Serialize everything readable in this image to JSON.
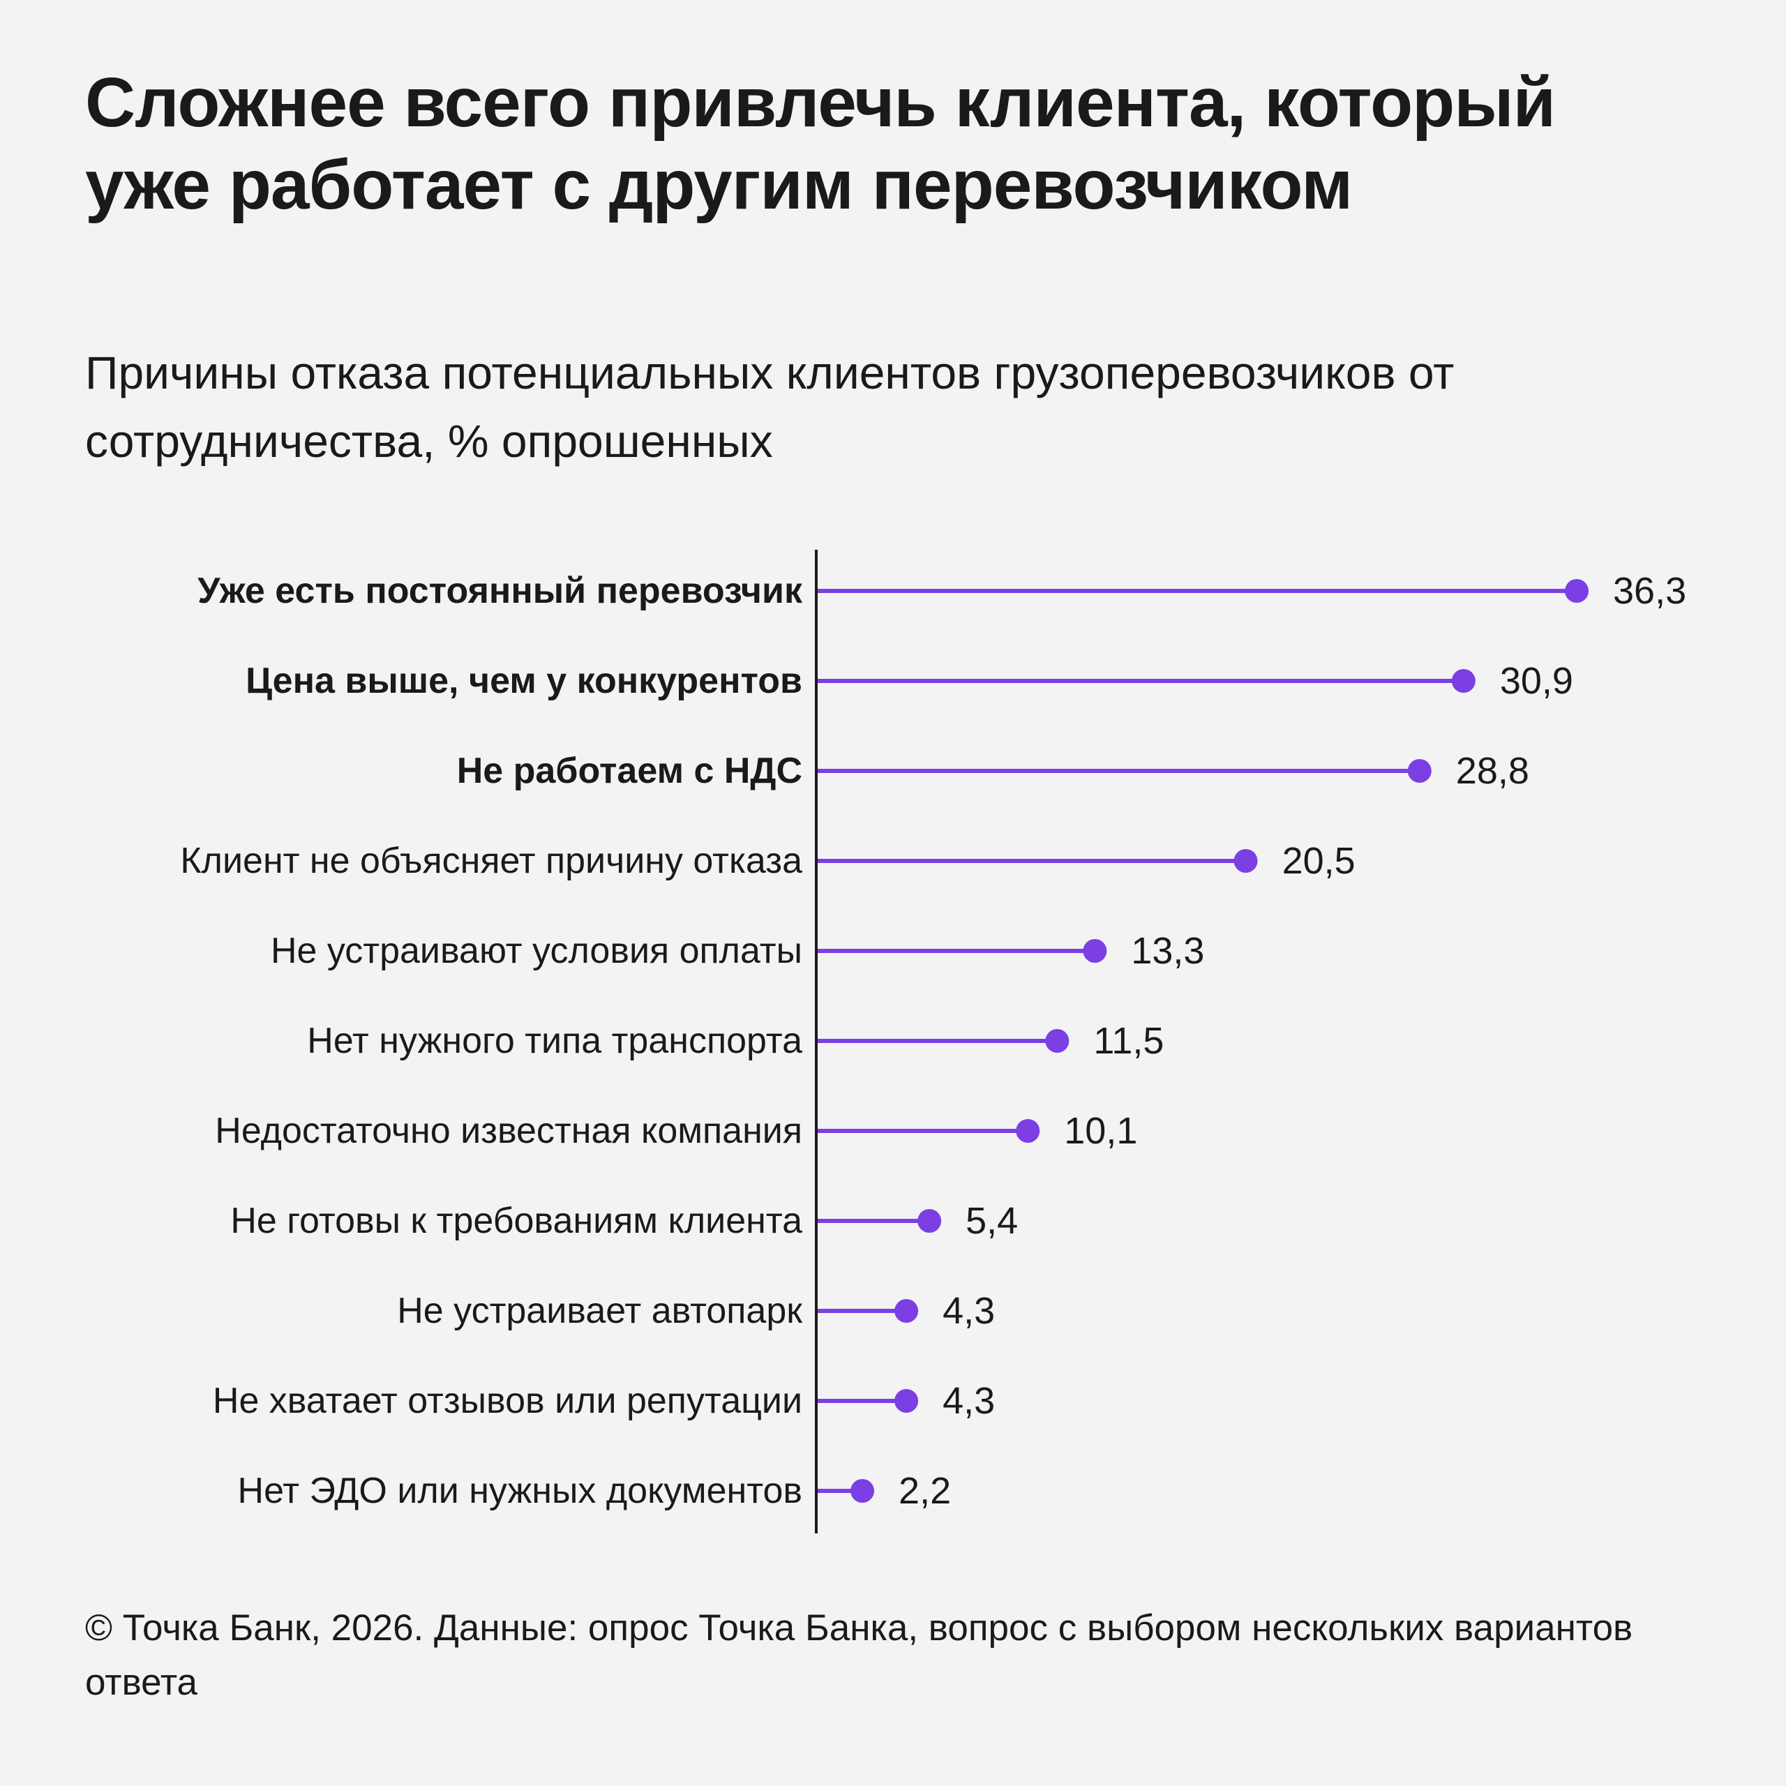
{
  "title": "Сложнее всего привлечь клиента, который уже работает с другим перевозчиком",
  "subtitle": "Причины отказа потенциальных клиентов грузоперевозчиков от сотрудничества, % опрошенных",
  "footer": "© Точка Банк, 2026. Данные: опрос Точка Банка, вопрос с выбором нескольких вариантов ответа",
  "colors": {
    "background": "#f3f3f3",
    "accent": "#7b3fe4",
    "axis": "#1a1a1a",
    "text": "#1a1a1a"
  },
  "chart_data": {
    "type": "bar",
    "style": "lollipop",
    "orientation": "horizontal",
    "categories": [
      "Уже есть постоянный перевозчик",
      "Цена выше, чем у конкурентов",
      "Не работаем с НДС",
      "Клиент не объясняет причину отказа",
      "Не устраивают условия оплаты",
      "Нет нужного типа транспорта",
      "Недостаточно известная компания",
      "Не готовы к требованиям клиента",
      "Не устраивает автопарк",
      "Не хватает отзывов или репутации",
      "Нет ЭДО или нужных документов"
    ],
    "values": [
      36.3,
      30.9,
      28.8,
      20.5,
      13.3,
      11.5,
      10.1,
      5.4,
      4.3,
      4.3,
      2.2
    ],
    "value_labels": [
      "36,3",
      "30,9",
      "28,8",
      "20,5",
      "13,3",
      "11,5",
      "10,1",
      "5,4",
      "4,3",
      "4,3",
      "2,2"
    ],
    "highlighted": [
      true,
      true,
      true,
      false,
      false,
      false,
      false,
      false,
      false,
      false,
      false
    ],
    "xlim": [
      0,
      36.3
    ],
    "grid": false,
    "legend": "none",
    "xlabel": "",
    "ylabel": ""
  }
}
